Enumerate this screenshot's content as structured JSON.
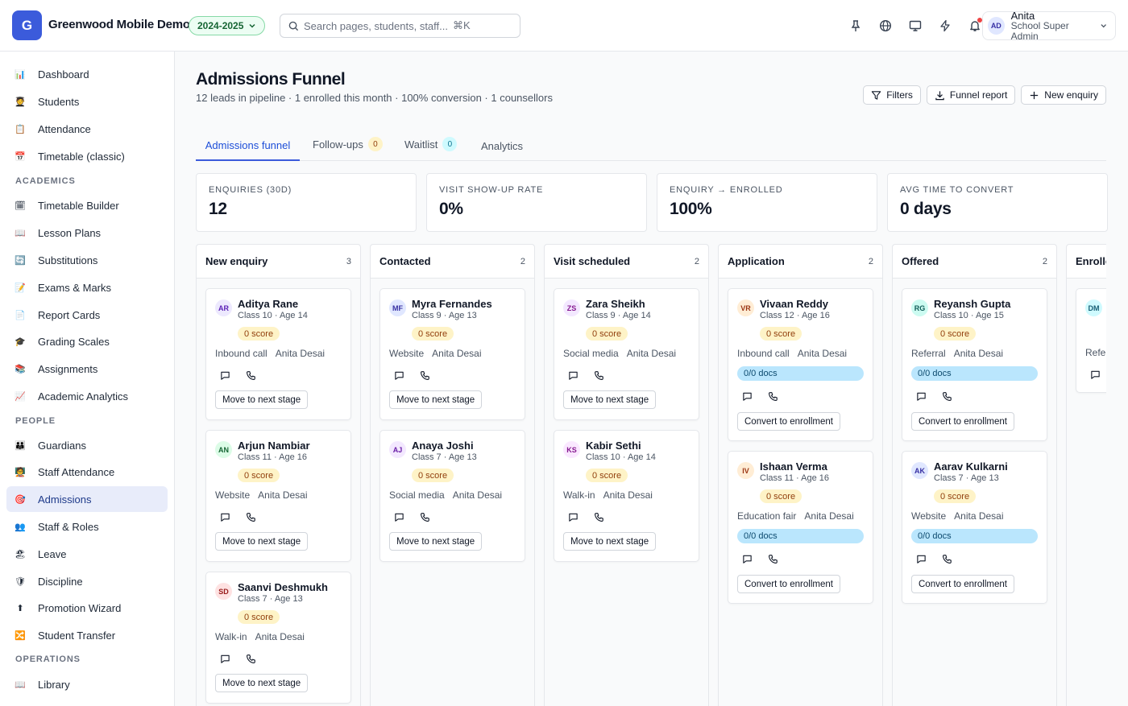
{
  "app": {
    "logo_letter": "G",
    "name": "Greenwood Mobile Demo",
    "year": "2024-2025",
    "search_placeholder": "Search pages, students, staff...",
    "search_shortcut": "⌘K"
  },
  "top_icons": [
    "pin-icon",
    "globe-icon",
    "monitor-icon",
    "lightning-icon",
    "bell-icon"
  ],
  "user": {
    "initials": "AD",
    "name": "Anita",
    "role": "School Super Admin"
  },
  "sidebar": {
    "items": [
      {
        "label": "Dashboard",
        "icon": "📊"
      },
      {
        "label": "Students",
        "icon": "🧑‍🎓"
      },
      {
        "label": "Attendance",
        "icon": "📋"
      },
      {
        "label": "Timetable (classic)",
        "icon": "📅"
      },
      {
        "label": "Timetable Builder",
        "icon": "🗓"
      },
      {
        "label": "Lesson Plans",
        "icon": "📖"
      },
      {
        "label": "Substitutions",
        "icon": "🔄"
      },
      {
        "label": "Exams & Marks",
        "icon": "📝"
      },
      {
        "label": "Report Cards",
        "icon": "📄"
      },
      {
        "label": "Grading Scales",
        "icon": "🎓"
      },
      {
        "label": "Assignments",
        "icon": "📚"
      },
      {
        "label": "Academic Analytics",
        "icon": "📈"
      },
      {
        "label": "Guardians",
        "icon": "👪"
      },
      {
        "label": "Staff Attendance",
        "icon": "🧑‍🏫"
      },
      {
        "label": "Admissions",
        "icon": "🎯"
      },
      {
        "label": "Staff & Roles",
        "icon": "👥"
      },
      {
        "label": "Leave",
        "icon": "🏖"
      },
      {
        "label": "Discipline",
        "icon": "🛡"
      },
      {
        "label": "Promotion Wizard",
        "icon": "⬆"
      },
      {
        "label": "Student Transfer",
        "icon": "🔀"
      },
      {
        "label": "Library",
        "icon": "📖"
      }
    ],
    "sections": [
      "ACADEMICS",
      "PEOPLE",
      "OPERATIONS"
    ]
  },
  "page": {
    "title": "Admissions Funnel",
    "subtitle": "12 leads in pipeline · 1 enrolled this month · 100% conversion · 1 counsellors",
    "actions": {
      "filters": "Filters",
      "report": "Funnel report",
      "new": "New enquiry"
    }
  },
  "tabs": [
    {
      "label": "Admissions funnel"
    },
    {
      "label": "Follow-ups",
      "badge": "0"
    },
    {
      "label": "Waitlist",
      "badge": "0"
    },
    {
      "label": "Analytics"
    }
  ],
  "stats": [
    {
      "label": "ENQUIRIES (30D)",
      "value": "12"
    },
    {
      "label": "VISIT SHOW-UP RATE",
      "value": "0%"
    },
    {
      "label": "ENQUIRY → ENROLLED",
      "value": "100%"
    },
    {
      "label": "AVG TIME TO CONVERT",
      "value": "0 days"
    }
  ],
  "columns": [
    {
      "title": "New enquiry",
      "count": "3",
      "cards": [
        {
          "initials": "AR",
          "name": "Aditya Rane",
          "meta": "Class 10 · Age 14",
          "score": "0 score",
          "source": "Inbound call",
          "owner": "Anita Desai",
          "action": "Move to next stage"
        },
        {
          "initials": "AN",
          "name": "Arjun Nambiar",
          "meta": "Class 11 · Age 16",
          "score": "0 score",
          "source": "Website",
          "owner": "Anita Desai",
          "action": "Move to next stage"
        },
        {
          "initials": "SD",
          "name": "Saanvi Deshmukh",
          "meta": "Class 7 · Age 13",
          "score": "0 score",
          "source": "Walk-in",
          "owner": "Anita Desai",
          "action": "Move to next stage"
        }
      ]
    },
    {
      "title": "Contacted",
      "count": "2",
      "cards": [
        {
          "initials": "MF",
          "name": "Myra Fernandes",
          "meta": "Class 9 · Age 13",
          "score": "0 score",
          "source": "Website",
          "owner": "Anita Desai",
          "action": "Move to next stage"
        },
        {
          "initials": "AJ",
          "name": "Anaya Joshi",
          "meta": "Class 7 · Age 13",
          "score": "0 score",
          "source": "Social media",
          "owner": "Anita Desai",
          "action": "Move to next stage"
        }
      ]
    },
    {
      "title": "Visit scheduled",
      "count": "2",
      "cards": [
        {
          "initials": "ZS",
          "name": "Zara Sheikh",
          "meta": "Class 9 · Age 14",
          "score": "0 score",
          "source": "Social media",
          "owner": "Anita Desai",
          "action": "Move to next stage"
        },
        {
          "initials": "KS",
          "name": "Kabir Sethi",
          "meta": "Class 10 · Age 14",
          "score": "0 score",
          "source": "Walk-in",
          "owner": "Anita Desai",
          "action": "Move to next stage"
        }
      ]
    },
    {
      "title": "Application",
      "count": "2",
      "cards": [
        {
          "initials": "VR",
          "name": "Vivaan Reddy",
          "meta": "Class 12 · Age 16",
          "score": "0 score",
          "source": "Inbound call",
          "owner": "Anita Desai",
          "docs": "0/0 docs",
          "action": "Convert to enrollment"
        },
        {
          "initials": "IV",
          "name": "Ishaan Verma",
          "meta": "Class 11 · Age 16",
          "score": "0 score",
          "source": "Education fair",
          "owner": "Anita Desai",
          "docs": "0/0 docs",
          "action": "Convert to enrollment"
        }
      ]
    },
    {
      "title": "Offered",
      "count": "2",
      "cards": [
        {
          "initials": "RG",
          "name": "Reyansh Gupta",
          "meta": "Class 10 · Age 15",
          "score": "0 score",
          "source": "Referral",
          "owner": "Anita Desai",
          "docs": "0/0 docs",
          "action": "Convert to enrollment"
        },
        {
          "initials": "AK",
          "name": "Aarav Kulkarni",
          "meta": "Class 7 · Age 13",
          "score": "0 score",
          "source": "Website",
          "owner": "Anita Desai",
          "docs": "0/0 docs",
          "action": "Convert to enrollment"
        }
      ]
    },
    {
      "title": "Enrolled",
      "count": "",
      "cards": [
        {
          "initials": "DM",
          "source": "Referral"
        }
      ]
    }
  ]
}
